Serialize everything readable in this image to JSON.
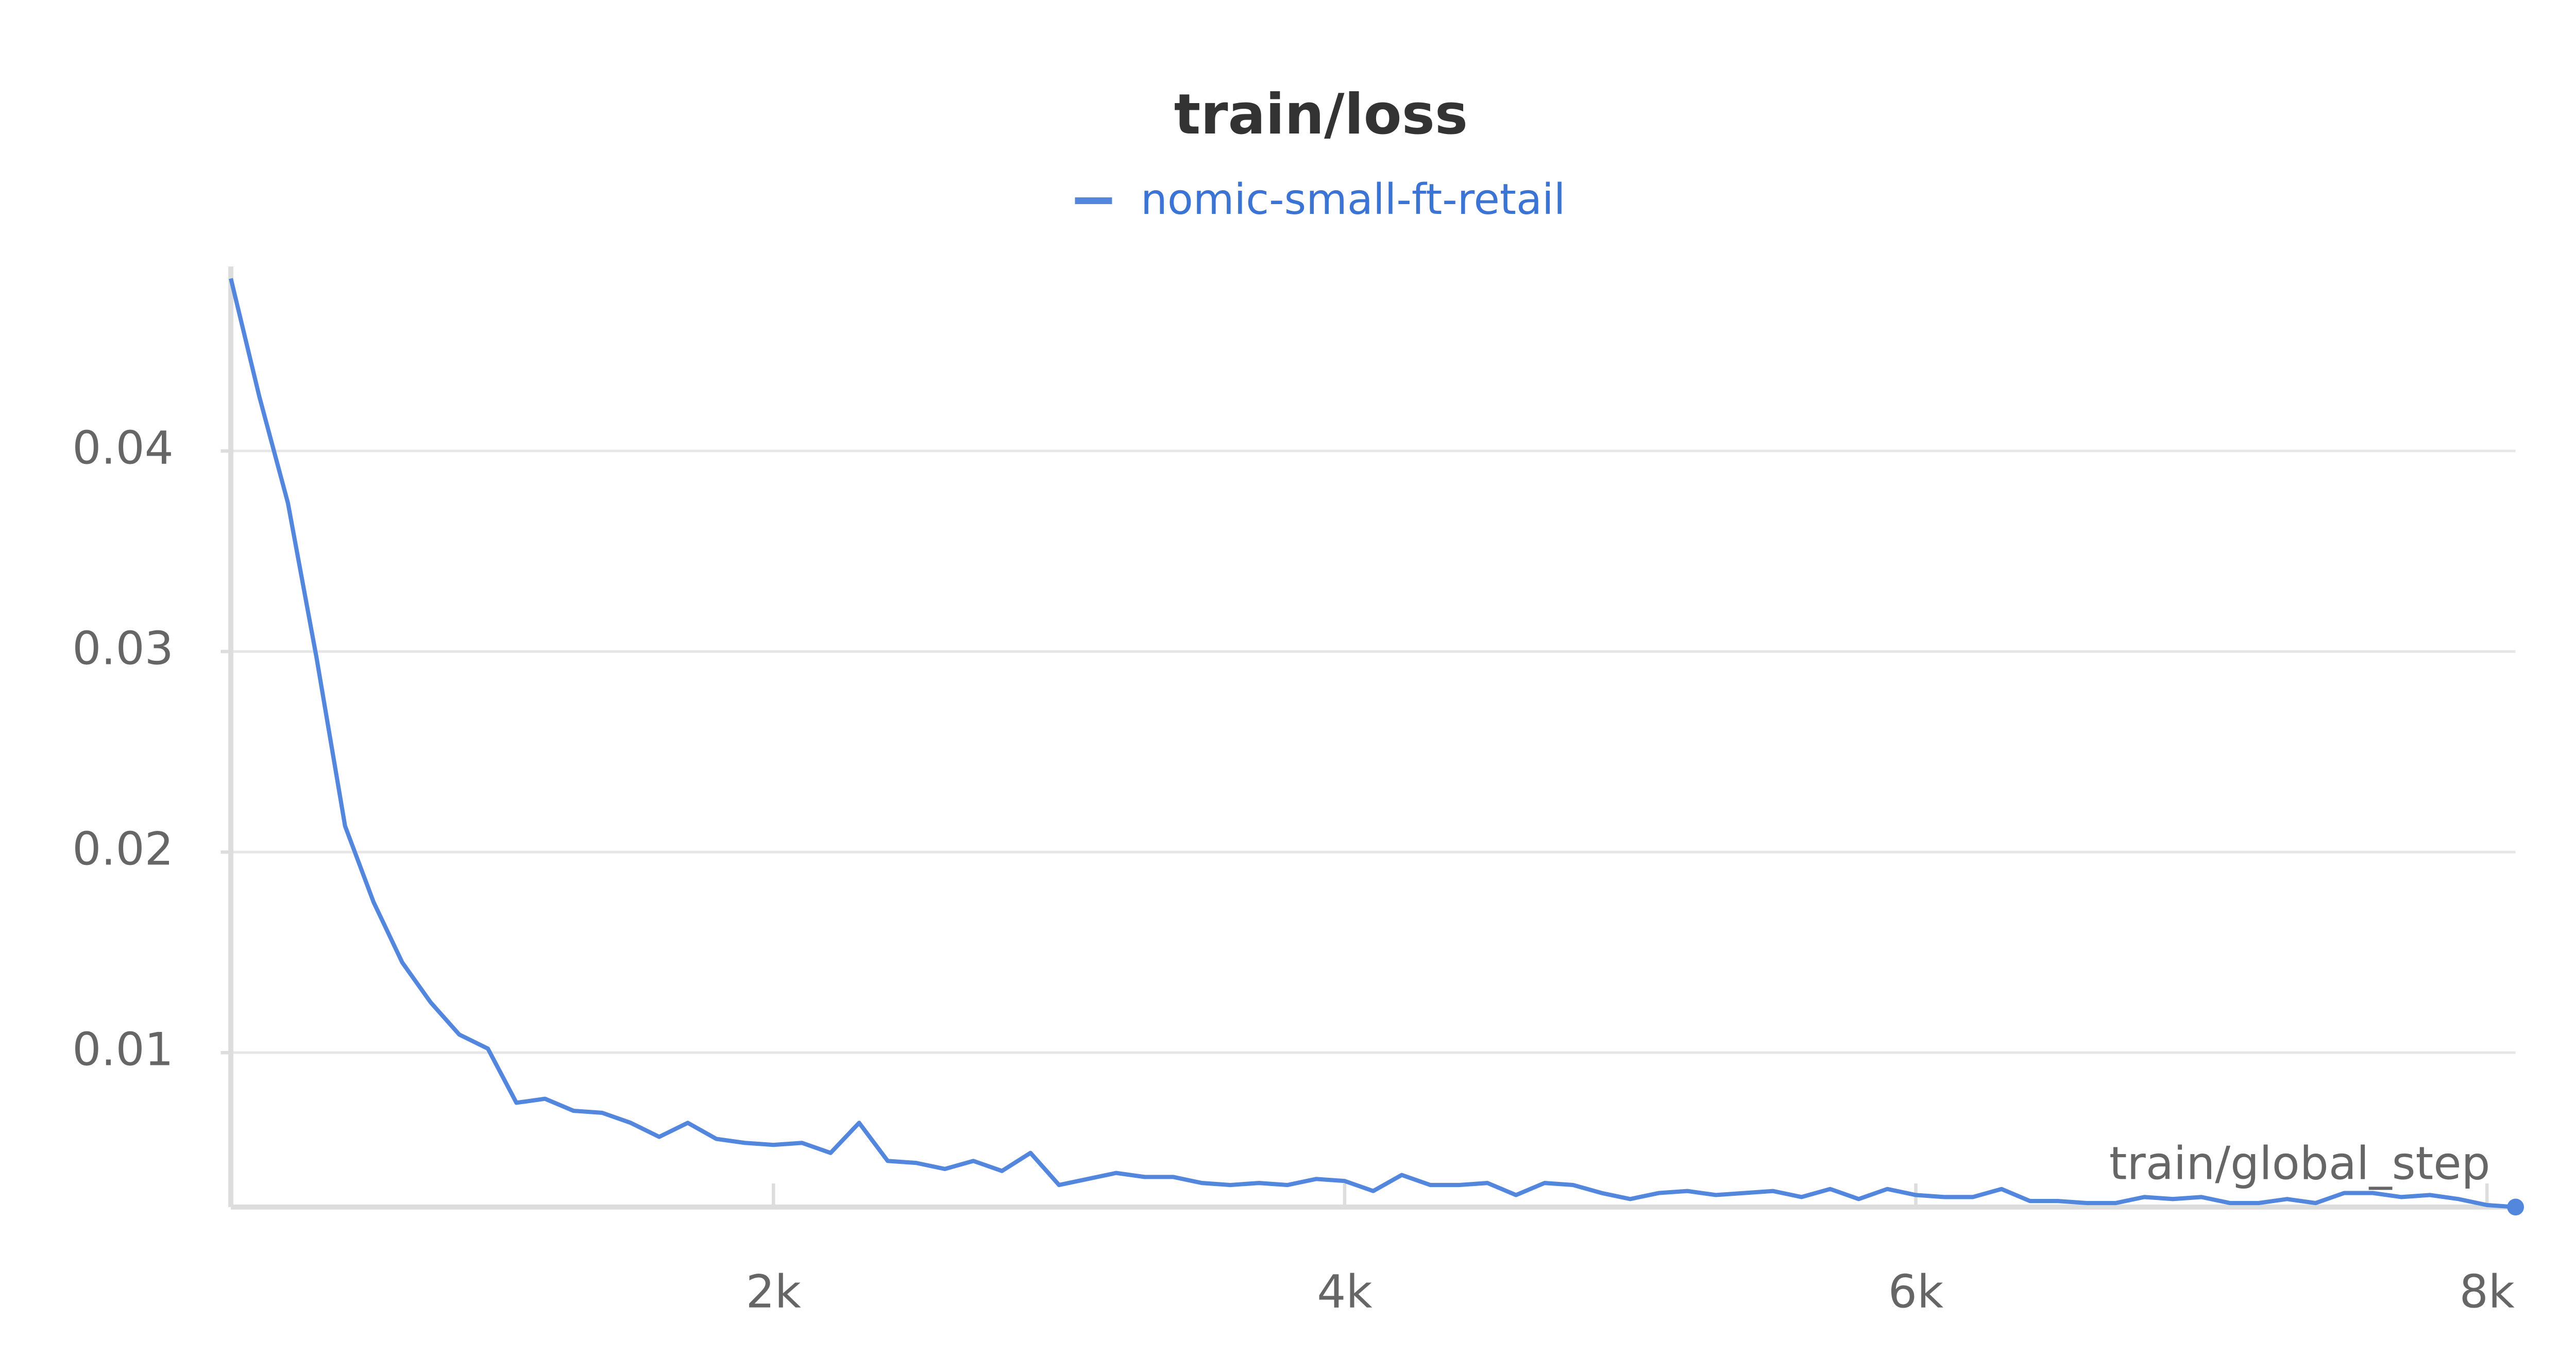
{
  "chart_data": {
    "type": "line",
    "title": "train/loss",
    "x_label": "train/global_step",
    "x": [
      100,
      200,
      300,
      400,
      500,
      600,
      700,
      800,
      900,
      1000,
      1100,
      1200,
      1300,
      1400,
      1500,
      1600,
      1700,
      1800,
      1900,
      2000,
      2100,
      2200,
      2300,
      2400,
      2500,
      2600,
      2700,
      2800,
      2900,
      3000,
      3100,
      3200,
      3300,
      3400,
      3500,
      3600,
      3700,
      3800,
      3900,
      4000,
      4100,
      4200,
      4300,
      4400,
      4500,
      4600,
      4700,
      4800,
      4900,
      5000,
      5100,
      5200,
      5300,
      5400,
      5500,
      5600,
      5700,
      5800,
      5900,
      6000,
      6100,
      6200,
      6300,
      6400,
      6500,
      6600,
      6700,
      6800,
      6900,
      7000,
      7100,
      7200,
      7300,
      7400,
      7500,
      7600,
      7700,
      7800,
      7900,
      8000,
      8100
    ],
    "series": [
      {
        "name": "nomic-small-ft-retail",
        "color": "#5387dd",
        "values": [
          0.0486,
          0.0427,
          0.0374,
          0.0297,
          0.0213,
          0.0175,
          0.0145,
          0.0125,
          0.0109,
          0.0102,
          0.0075,
          0.0077,
          0.0071,
          0.007,
          0.0065,
          0.0058,
          0.0065,
          0.0057,
          0.0055,
          0.0054,
          0.0055,
          0.005,
          0.0065,
          0.0046,
          0.0045,
          0.0042,
          0.0046,
          0.0041,
          0.005,
          0.0034,
          0.0037,
          0.004,
          0.0038,
          0.0038,
          0.0035,
          0.0034,
          0.0035,
          0.0034,
          0.0037,
          0.0036,
          0.0031,
          0.0039,
          0.0034,
          0.0034,
          0.0035,
          0.0029,
          0.0035,
          0.0034,
          0.003,
          0.0027,
          0.003,
          0.0031,
          0.0029,
          0.003,
          0.0031,
          0.0028,
          0.0032,
          0.0027,
          0.0032,
          0.0029,
          0.0028,
          0.0028,
          0.0032,
          0.0026,
          0.0026,
          0.0025,
          0.0025,
          0.0028,
          0.0027,
          0.0028,
          0.0025,
          0.0025,
          0.0027,
          0.0025,
          0.003,
          0.003,
          0.0028,
          0.0029,
          0.0027,
          0.0024,
          0.0023
        ]
      }
    ],
    "xlim": [
      100,
      8100
    ],
    "ylim": [
      0.0023,
      0.0492
    ],
    "xticks": [
      {
        "value": 2000,
        "label": "2k"
      },
      {
        "value": 4000,
        "label": "4k"
      },
      {
        "value": 6000,
        "label": "6k"
      },
      {
        "value": 8000,
        "label": "8k"
      }
    ],
    "yticks": [
      0.01,
      0.02,
      0.03,
      0.04
    ],
    "grid": true
  }
}
